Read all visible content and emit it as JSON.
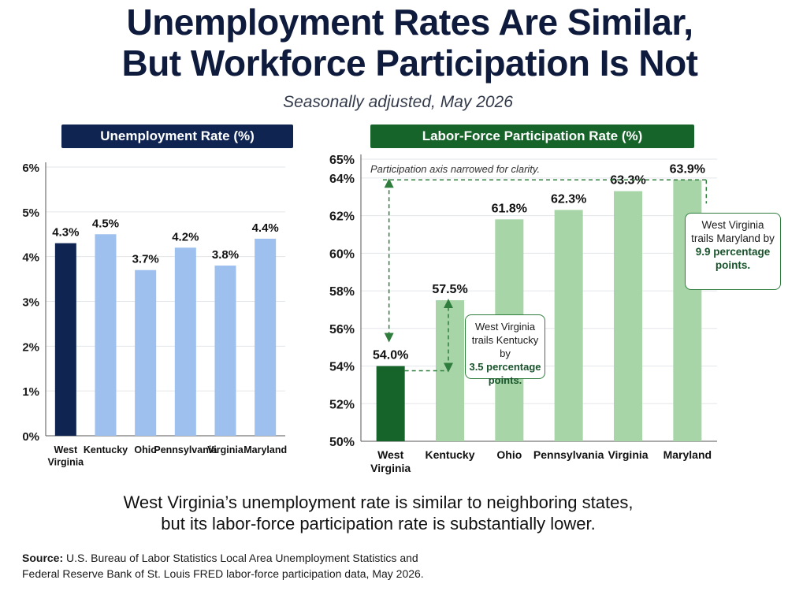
{
  "title_line1": "Unemployment Rates Are Similar,",
  "title_line2": "But Workforce Participation Is Not",
  "subtitle": "Seasonally adjusted, May 2026",
  "chart_data": [
    {
      "type": "bar",
      "title": "Unemployment Rate (%)",
      "categories": [
        "West Virginia",
        "Kentucky",
        "Ohio",
        "Pennsylvania",
        "Virginia",
        "Maryland"
      ],
      "values": [
        4.3,
        4.5,
        3.7,
        4.2,
        3.8,
        4.4
      ],
      "value_labels": [
        "4.3%",
        "4.5%",
        "3.7%",
        "4.2%",
        "3.8%",
        "4.4%"
      ],
      "ylim": [
        0,
        6
      ],
      "yticks": [
        0,
        1,
        2,
        3,
        4,
        5,
        6
      ],
      "ytick_labels": [
        "0%",
        "1%",
        "2%",
        "3%",
        "4%",
        "5%",
        "6%"
      ],
      "grid": true,
      "colors": {
        "highlight": "#102452",
        "other": "#9dc0ee"
      }
    },
    {
      "type": "bar",
      "title": "Labor-Force Participation Rate (%)",
      "categories": [
        "West Virginia",
        "Kentucky",
        "Ohio",
        "Pennsylvania",
        "Virginia",
        "Maryland"
      ],
      "values": [
        54.0,
        57.5,
        61.8,
        62.3,
        63.3,
        63.9
      ],
      "value_labels": [
        "54.0%",
        "57.5%",
        "61.8%",
        "62.3%",
        "63.3%",
        "63.9%"
      ],
      "ylim": [
        50,
        65
      ],
      "yticks": [
        50,
        52,
        54,
        56,
        58,
        60,
        62,
        64,
        65
      ],
      "ytick_labels": [
        "50%",
        "52%",
        "54%",
        "56%",
        "58%",
        "60%",
        "62%",
        "64%",
        "65%"
      ],
      "grid": true,
      "note": "Participation axis narrowed for clarity.",
      "colors": {
        "highlight": "#17642a",
        "other": "#a8d5a8",
        "annotation": "#2f7d3c"
      }
    }
  ],
  "callout_ky": {
    "line1": "West Virginia",
    "line2": "trails Kentucky by",
    "bold1": "3.5 percentage",
    "bold2": "points."
  },
  "callout_md": {
    "line1": "West Virginia",
    "line2": "trails Maryland by",
    "bold1": "9.9 percentage",
    "bold2": "points."
  },
  "conclusion_line1": "West Virginia’s unemployment rate is similar to neighboring states,",
  "conclusion_line2": "but its labor-force participation rate is substantially lower.",
  "source_label": "Source:",
  "source_line1": "U.S. Bureau of Labor Statistics Local Area Unemployment Statistics and",
  "source_line2": "Federal Reserve Bank of St. Louis FRED labor-force participation data, May 2026."
}
